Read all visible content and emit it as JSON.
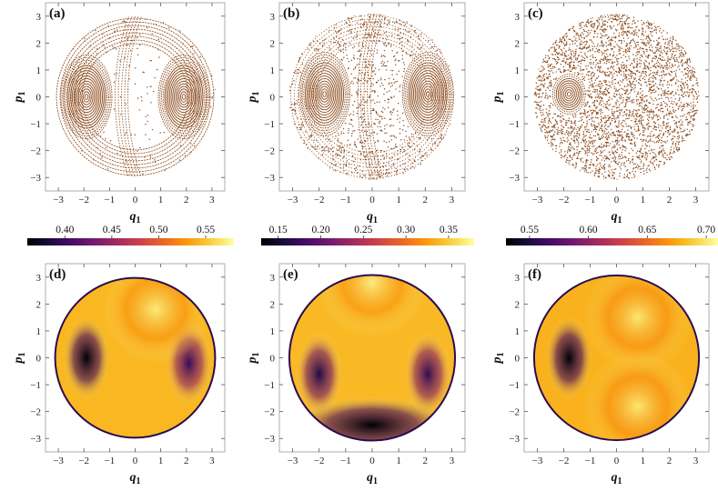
{
  "chart_data": [
    {
      "type": "scatter",
      "panel": "(a)",
      "kind": "poincare-section",
      "xlabel": "q",
      "xlabel_sub": "1",
      "ylabel": "p",
      "ylabel_sub": "1",
      "xlim": [
        -3.5,
        3.5
      ],
      "ylim": [
        -3.5,
        3.5
      ],
      "xticks": [
        -3,
        -2,
        -1,
        0,
        1,
        2,
        3
      ],
      "yticks": [
        3,
        2,
        1,
        0,
        -1,
        -2,
        -3
      ],
      "point_color": "#8b4a1c",
      "islands": [
        {
          "center": [
            -1.9,
            0.0
          ],
          "rings": "regular"
        },
        {
          "center": [
            1.9,
            0.0
          ],
          "rings": "regular"
        }
      ],
      "chaotic_fraction": 0.05
    },
    {
      "type": "scatter",
      "panel": "(b)",
      "kind": "poincare-section",
      "xlabel": "q",
      "xlabel_sub": "1",
      "ylabel": "p",
      "ylabel_sub": "1",
      "xlim": [
        -3.5,
        3.5
      ],
      "ylim": [
        -3.5,
        3.5
      ],
      "xticks": [
        -3,
        -2,
        -1,
        0,
        1,
        2,
        3
      ],
      "yticks": [
        3,
        2,
        1,
        0,
        -1,
        -2,
        -3
      ],
      "point_color": "#8b4a1c",
      "islands": [
        {
          "center": [
            -1.8,
            0.1
          ],
          "rings": "regular"
        },
        {
          "center": [
            2.1,
            0.1
          ],
          "rings": "regular"
        }
      ],
      "chaotic_fraction": 0.35
    },
    {
      "type": "scatter",
      "panel": "(c)",
      "kind": "poincare-section",
      "xlabel": "q",
      "xlabel_sub": "1",
      "ylabel": "p",
      "ylabel_sub": "1",
      "xlim": [
        -3.5,
        3.5
      ],
      "ylim": [
        -3.5,
        3.5
      ],
      "xticks": [
        -3,
        -2,
        -1,
        0,
        1,
        2,
        3
      ],
      "yticks": [
        3,
        2,
        1,
        0,
        -1,
        -2,
        -3
      ],
      "point_color": "#8b4a1c",
      "islands": [
        {
          "center": [
            -1.8,
            0.1
          ],
          "rings": "small"
        }
      ],
      "chaotic_fraction": 0.9
    },
    {
      "type": "heatmap",
      "panel": "(d)",
      "xlabel": "q",
      "xlabel_sub": "1",
      "ylabel": "p",
      "ylabel_sub": "1",
      "xlim": [
        -3.5,
        3.5
      ],
      "ylim": [
        -3.5,
        3.5
      ],
      "xticks": [
        -3,
        -2,
        -1,
        0,
        1,
        2,
        3
      ],
      "yticks": [
        3,
        2,
        1,
        0,
        -1,
        -2,
        -3
      ],
      "colorbar": {
        "range": [
          0.36,
          0.58
        ],
        "ticks": [
          "0.40",
          "0.45",
          "0.50",
          "0.55"
        ],
        "tick_values": [
          0.4,
          0.45,
          0.5,
          0.55
        ],
        "colormap": "inferno"
      },
      "features": [
        {
          "type": "minimum",
          "at": [
            -1.9,
            0.0
          ],
          "value": 0.36
        },
        {
          "type": "minimum",
          "at": [
            2.1,
            -0.2
          ],
          "value": 0.4
        },
        {
          "type": "maximum",
          "at": [
            0.8,
            1.8
          ],
          "value": 0.57
        }
      ]
    },
    {
      "type": "heatmap",
      "panel": "(e)",
      "xlabel": "q",
      "xlabel_sub": "1",
      "ylabel": "p",
      "ylabel_sub": "1",
      "xlim": [
        -3.5,
        3.5
      ],
      "ylim": [
        -3.5,
        3.5
      ],
      "xticks": [
        -3,
        -2,
        -1,
        0,
        1,
        2,
        3
      ],
      "yticks": [
        3,
        2,
        1,
        0,
        -1,
        -2,
        -3
      ],
      "colorbar": {
        "range": [
          0.13,
          0.38
        ],
        "ticks": [
          "0.15",
          "0.20",
          "0.25",
          "0.30",
          "0.35"
        ],
        "tick_values": [
          0.15,
          0.2,
          0.25,
          0.3,
          0.35
        ],
        "colormap": "inferno"
      },
      "features": [
        {
          "type": "minimum",
          "at": [
            0.0,
            -2.5
          ],
          "value": 0.13
        },
        {
          "type": "minimum",
          "at": [
            -2.0,
            -0.6
          ],
          "value": 0.16
        },
        {
          "type": "minimum",
          "at": [
            2.1,
            -0.6
          ],
          "value": 0.17
        },
        {
          "type": "maximum",
          "at": [
            0.0,
            2.8
          ],
          "value": 0.37
        }
      ]
    },
    {
      "type": "heatmap",
      "panel": "(f)",
      "xlabel": "q",
      "xlabel_sub": "1",
      "ylabel": "p",
      "ylabel_sub": "1",
      "xlim": [
        -3.5,
        3.5
      ],
      "ylim": [
        -3.5,
        3.5
      ],
      "xticks": [
        -3,
        -2,
        -1,
        0,
        1,
        2,
        3
      ],
      "yticks": [
        3,
        2,
        1,
        0,
        -1,
        -2,
        -3
      ],
      "colorbar": {
        "range": [
          0.53,
          0.71
        ],
        "ticks": [
          "0.55",
          "0.60",
          "0.65",
          "0.70"
        ],
        "tick_values": [
          0.55,
          0.6,
          0.65,
          0.7
        ],
        "colormap": "inferno"
      },
      "features": [
        {
          "type": "minimum",
          "at": [
            -1.8,
            0.0
          ],
          "value": 0.53
        },
        {
          "type": "maximum",
          "at": [
            0.8,
            1.5
          ],
          "value": 0.7
        },
        {
          "type": "maximum",
          "at": [
            0.8,
            -1.8
          ],
          "value": 0.7
        }
      ]
    }
  ]
}
